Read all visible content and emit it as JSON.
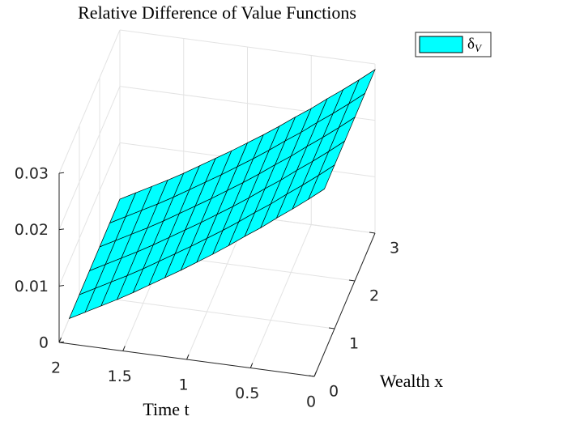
{
  "chart_data": {
    "type": "surface",
    "title": "Relative Difference of Value Functions",
    "xlabel": "Wealth x",
    "tlabel": "Time t",
    "t": [
      0,
      0.125,
      0.25,
      0.375,
      0.5,
      0.625,
      0.75,
      0.875,
      1,
      1.125,
      1.25,
      1.375,
      1.5,
      1.625,
      1.75,
      1.875,
      2
    ],
    "x": [
      0.5,
      1,
      1.5,
      2,
      2.5,
      3
    ],
    "series": [
      {
        "name": "δ",
        "name_subscript": "V",
        "color": "#00ffff",
        "edge_color": "#000000",
        "values": [
          [
            0.029,
            0.029,
            0.029,
            0.029,
            0.029,
            0.029
          ],
          [
            0.0268,
            0.0268,
            0.0268,
            0.0268,
            0.0268,
            0.0268
          ],
          [
            0.0247,
            0.0247,
            0.0247,
            0.0247,
            0.0247,
            0.0247
          ],
          [
            0.0227,
            0.0227,
            0.0227,
            0.0227,
            0.0227,
            0.0227
          ],
          [
            0.0206,
            0.0206,
            0.0206,
            0.0206,
            0.0206,
            0.0206
          ],
          [
            0.0187,
            0.0187,
            0.0187,
            0.0187,
            0.0187,
            0.0187
          ],
          [
            0.0167,
            0.0167,
            0.0167,
            0.0167,
            0.0167,
            0.0167
          ],
          [
            0.0148,
            0.0148,
            0.0148,
            0.0148,
            0.0148,
            0.0148
          ],
          [
            0.013,
            0.013,
            0.013,
            0.013,
            0.013,
            0.013
          ],
          [
            0.0112,
            0.0112,
            0.0112,
            0.0112,
            0.0112,
            0.0112
          ],
          [
            0.0095,
            0.0095,
            0.0095,
            0.0095,
            0.0095,
            0.0095
          ],
          [
            0.0078,
            0.0078,
            0.0078,
            0.0078,
            0.0078,
            0.0078
          ],
          [
            0.0061,
            0.0061,
            0.0061,
            0.0061,
            0.0061,
            0.0061
          ],
          [
            0.0045,
            0.0045,
            0.0045,
            0.0045,
            0.0045,
            0.0045
          ],
          [
            0.003,
            0.003,
            0.003,
            0.003,
            0.003,
            0.003
          ],
          [
            0.0015,
            0.0015,
            0.0015,
            0.0015,
            0.0015,
            0.0015
          ],
          [
            0,
            0,
            0,
            0,
            0,
            0
          ]
        ]
      }
    ],
    "tlim": [
      0,
      2
    ],
    "tticks": [
      0,
      0.5,
      1,
      1.5,
      2
    ],
    "xlim": [
      0,
      3
    ],
    "xticks": [
      0,
      1,
      2,
      3
    ],
    "zlim": [
      0,
      0.03
    ],
    "zticks": [
      0,
      0.01,
      0.02,
      0.03
    ],
    "grid": true,
    "legend": "northeast-outside"
  }
}
